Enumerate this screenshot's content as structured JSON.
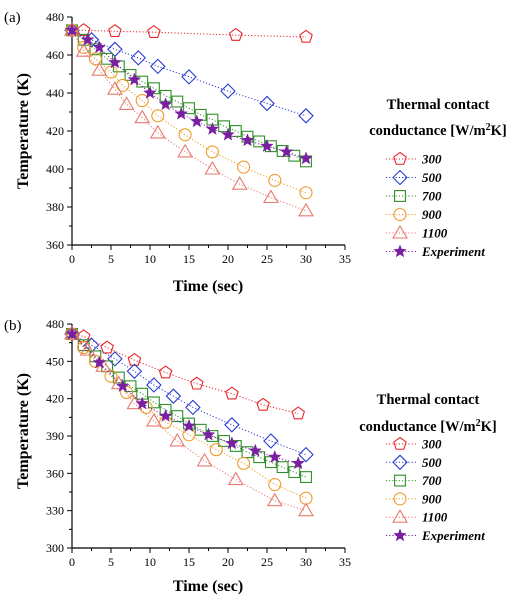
{
  "chart_data": [
    {
      "type": "line",
      "panel_label": "(a)",
      "xlabel": "Time (sec)",
      "ylabel": "Temperature (K)",
      "xlim": [
        0,
        35
      ],
      "ylim": [
        360,
        480
      ],
      "xticks": [
        "0",
        "5",
        "10",
        "15",
        "20",
        "25",
        "30",
        "35"
      ],
      "yticks": [
        "360",
        "380",
        "400",
        "420",
        "440",
        "460",
        "480"
      ],
      "legend_title_line1": "Thermal  contact",
      "legend_title_line2": "conductance [W/m",
      "legend_title_sup": "2",
      "legend_title_end": "K]",
      "series": [
        {
          "name": "300",
          "marker": "pentagon",
          "color": "#e8262c",
          "x": [
            0,
            1.5,
            5.5,
            10.5,
            21,
            30
          ],
          "y": [
            473,
            473,
            472.5,
            472,
            470.5,
            469.5
          ]
        },
        {
          "name": "500",
          "marker": "diamond",
          "color": "#2a3dd1",
          "x": [
            0,
            2.5,
            5.5,
            8.5,
            11,
            15,
            20,
            25,
            30
          ],
          "y": [
            473,
            468,
            463,
            458.5,
            454,
            448.5,
            441,
            434.5,
            428
          ]
        },
        {
          "name": "700",
          "marker": "square",
          "color": "#2f8f2a",
          "x": [
            0,
            1.5,
            3,
            4.5,
            6,
            7.5,
            9,
            10.5,
            12,
            13.5,
            15,
            16.5,
            18,
            19.5,
            21,
            22.5,
            24,
            25.5,
            27,
            28.5,
            30
          ],
          "y": [
            473,
            468,
            463,
            458,
            454,
            449.5,
            446,
            442.5,
            438.5,
            435.5,
            432,
            428.5,
            426,
            422.5,
            420,
            417,
            414.5,
            412,
            409.5,
            407,
            404
          ]
        },
        {
          "name": "900",
          "marker": "circle",
          "color": "#f09a28",
          "x": [
            0,
            1.5,
            3,
            5,
            6.5,
            9,
            11,
            14.5,
            18,
            22,
            26,
            30
          ],
          "y": [
            473,
            464,
            458,
            451,
            444,
            436,
            428,
            418,
            409,
            401,
            394,
            387.5
          ]
        },
        {
          "name": "1100",
          "marker": "triangle",
          "color": "#e87a6e",
          "x": [
            0,
            1.5,
            3.5,
            5.5,
            7,
            9,
            11,
            14.5,
            18,
            21.5,
            25.5,
            30
          ],
          "y": [
            473,
            462,
            452,
            442,
            434,
            427,
            419,
            409,
            400,
            392,
            385,
            378
          ]
        },
        {
          "name": "Experiment",
          "marker": "star",
          "color": "#7b1fa2",
          "x": [
            0,
            2,
            3.5,
            5.5,
            8,
            10,
            12,
            14,
            16,
            18,
            20,
            22.5,
            25,
            27.5,
            30
          ],
          "y": [
            473,
            468,
            464,
            456,
            447,
            440,
            434,
            429,
            425,
            421,
            418,
            415,
            412,
            409,
            405.5
          ]
        }
      ]
    },
    {
      "type": "line",
      "panel_label": "(b)",
      "xlabel": "Time (sec)",
      "ylabel": "Temperature (K)",
      "xlim": [
        0,
        35
      ],
      "ylim": [
        300,
        480
      ],
      "xticks": [
        "0",
        "5",
        "10",
        "15",
        "20",
        "25",
        "30",
        "35"
      ],
      "yticks": [
        "300",
        "330",
        "360",
        "390",
        "420",
        "450",
        "480"
      ],
      "legend_title_line1": "Thermal  contact",
      "legend_title_line2": "conductance [W/m",
      "legend_title_sup": "2",
      "legend_title_end": "K]",
      "series": [
        {
          "name": "300",
          "marker": "pentagon",
          "color": "#e8262c",
          "x": [
            0,
            1.5,
            4.5,
            8,
            12,
            16,
            20.5,
            24.5,
            29
          ],
          "y": [
            472,
            470,
            461,
            451,
            441,
            432,
            424,
            415,
            408
          ]
        },
        {
          "name": "500",
          "marker": "diamond",
          "color": "#2a3dd1",
          "x": [
            0,
            2.5,
            5.5,
            8,
            10.5,
            13,
            15.5,
            20.5,
            25.5,
            30
          ],
          "y": [
            472,
            463,
            452,
            442,
            431,
            422,
            413,
            399,
            386,
            375
          ]
        },
        {
          "name": "700",
          "marker": "square",
          "color": "#2f8f2a",
          "x": [
            0,
            1.5,
            3,
            4.5,
            6,
            7.5,
            9,
            10.5,
            12,
            13.5,
            15,
            16.5,
            18,
            19.5,
            21,
            22.5,
            24,
            25.5,
            27,
            28.5,
            30
          ],
          "y": [
            472,
            463,
            454,
            446,
            437,
            430,
            424,
            417,
            411,
            406,
            400,
            395,
            390,
            386,
            382,
            377,
            373,
            369,
            365,
            361,
            357
          ]
        },
        {
          "name": "900",
          "marker": "circle",
          "color": "#f09a28",
          "x": [
            0,
            1.5,
            3,
            5,
            7,
            9.5,
            12,
            15,
            18.5,
            22,
            26,
            30
          ],
          "y": [
            472,
            461,
            450,
            438,
            425,
            413,
            401,
            391,
            379,
            368,
            351,
            340
          ]
        },
        {
          "name": "1100",
          "marker": "triangle",
          "color": "#e87a6e",
          "x": [
            0,
            2,
            4,
            6,
            8,
            10.5,
            13.5,
            17,
            21,
            26,
            30
          ],
          "y": [
            472,
            459,
            446,
            432,
            416,
            402,
            386,
            370,
            355,
            338,
            330
          ]
        },
        {
          "name": "Experiment",
          "marker": "star",
          "color": "#7b1fa2",
          "x": [
            0,
            3.5,
            6.5,
            9,
            12,
            15,
            17.5,
            20.5,
            23.5,
            26,
            29
          ],
          "y": [
            472,
            449,
            430,
            416,
            406,
            398,
            391,
            384,
            378,
            373,
            368
          ]
        }
      ]
    }
  ]
}
